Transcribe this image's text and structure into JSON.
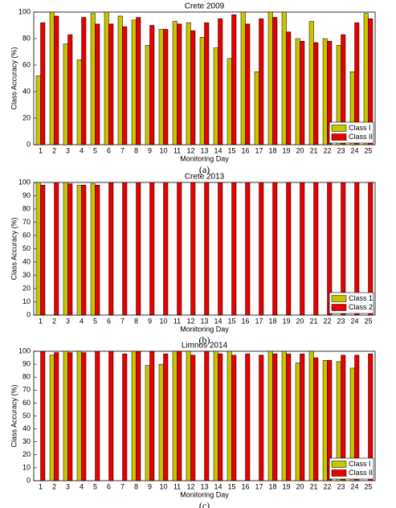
{
  "chart_data": [
    {
      "type": "bar",
      "title": "Crete 2009",
      "xlabel": "Monitoring Day",
      "ylabel": "Class Accuracy (%)",
      "caption": "(a)",
      "categories": [
        "1",
        "2",
        "3",
        "4",
        "5",
        "6",
        "7",
        "8",
        "9",
        "10",
        "11",
        "12",
        "13",
        "14",
        "15",
        "16",
        "17",
        "18",
        "19",
        "20",
        "21",
        "22",
        "23",
        "24",
        "25"
      ],
      "series": [
        {
          "name": "Class I",
          "color": "#c8c400",
          "values": [
            52,
            100,
            76,
            64,
            99,
            100,
            97,
            94,
            75,
            87,
            93,
            92,
            81,
            73,
            65,
            100,
            55,
            100,
            100,
            80,
            93,
            80,
            75,
            55,
            99
          ]
        },
        {
          "name": "Class II",
          "color": "#e80000",
          "values": [
            92,
            97,
            83,
            96,
            91,
            91,
            89,
            96,
            90,
            87,
            91,
            86,
            92,
            95,
            98,
            91,
            95,
            96,
            85,
            78,
            77,
            78,
            83,
            92,
            95
          ]
        }
      ],
      "ylim": [
        0,
        100
      ],
      "yticks": [
        0,
        20,
        40,
        60,
        80,
        100
      ],
      "legend": "lower right"
    },
    {
      "type": "bar",
      "title": "Crete 2013",
      "xlabel": "Monitoring Day",
      "ylabel": "Class Accuracy (%)",
      "caption": "(b)",
      "categories": [
        "1",
        "2",
        "3",
        "4",
        "5",
        "6",
        "7",
        "8",
        "9",
        "10",
        "11",
        "12",
        "13",
        "14",
        "15",
        "16",
        "17",
        "18",
        "19",
        "20",
        "21",
        "22",
        "23",
        "24",
        "25"
      ],
      "series": [
        {
          "name": "Class 1",
          "color": "#c8c400",
          "values": [
            100,
            0,
            100,
            98,
            99,
            0,
            0,
            0,
            0,
            0,
            0,
            0,
            0,
            0,
            0,
            0,
            0,
            0,
            0,
            0,
            0,
            0,
            0,
            0,
            0
          ]
        },
        {
          "name": "Class 2",
          "color": "#e80000",
          "values": [
            98,
            100,
            99,
            98,
            98,
            100,
            100,
            100,
            100,
            100,
            100,
            100,
            100,
            100,
            100,
            100,
            100,
            100,
            100,
            100,
            100,
            100,
            100,
            100,
            100
          ]
        }
      ],
      "ylim": [
        0,
        100
      ],
      "yticks": [
        0,
        10,
        20,
        30,
        40,
        50,
        60,
        70,
        80,
        90,
        100
      ],
      "legend": "lower right"
    },
    {
      "type": "bar",
      "title": "Limnos 2014",
      "xlabel": "Monitoring Day",
      "ylabel": "Class Accuracy (%)",
      "caption": "(c)",
      "categories": [
        "1",
        "2",
        "3",
        "4",
        "5",
        "6",
        "7",
        "8",
        "9",
        "10",
        "11",
        "12",
        "13",
        "14",
        "15",
        "16",
        "17",
        "18",
        "19",
        "20",
        "21",
        "22",
        "23",
        "24",
        "25"
      ],
      "series": [
        {
          "name": "Class I",
          "color": "#c8c400",
          "values": [
            0,
            97,
            100,
            100,
            0,
            0,
            0,
            100,
            89,
            90,
            100,
            100,
            0,
            100,
            100,
            0,
            0,
            100,
            100,
            91,
            100,
            93,
            92,
            87,
            0
          ]
        },
        {
          "name": "Class II",
          "color": "#e80000",
          "values": [
            100,
            99,
            99,
            99,
            100,
            100,
            98,
            100,
            100,
            98,
            100,
            97,
            100,
            98,
            97,
            98,
            97,
            98,
            98,
            98,
            95,
            93,
            97,
            97,
            98
          ]
        }
      ],
      "ylim": [
        0,
        100
      ],
      "yticks": [
        0,
        10,
        20,
        30,
        40,
        50,
        60,
        70,
        80,
        90,
        100
      ],
      "legend": "lower right"
    }
  ]
}
